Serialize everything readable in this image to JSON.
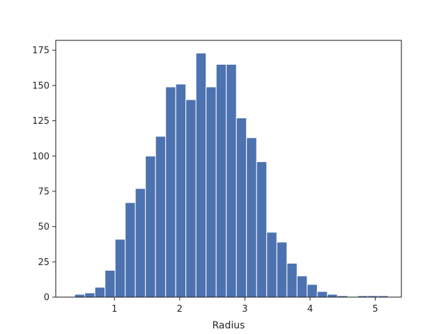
{
  "chart_data": {
    "type": "bar",
    "title": "",
    "xlabel": "Radius",
    "ylabel": "",
    "xlim": [
      0.1,
      5.4
    ],
    "ylim": [
      0,
      182
    ],
    "xticks": [
      1,
      2,
      3,
      4,
      5
    ],
    "yticks": [
      0,
      25,
      50,
      75,
      100,
      125,
      150,
      175
    ],
    "grid": false,
    "legend": "none",
    "bar_color": "#4c72b0",
    "bins": [
      {
        "x0": 0.39,
        "x1": 0.545,
        "count": 2
      },
      {
        "x0": 0.545,
        "x1": 0.7,
        "count": 3
      },
      {
        "x0": 0.7,
        "x1": 0.855,
        "count": 7
      },
      {
        "x0": 0.855,
        "x1": 1.01,
        "count": 19
      },
      {
        "x0": 1.01,
        "x1": 1.165,
        "count": 41
      },
      {
        "x0": 1.165,
        "x1": 1.32,
        "count": 67
      },
      {
        "x0": 1.32,
        "x1": 1.475,
        "count": 77
      },
      {
        "x0": 1.475,
        "x1": 1.63,
        "count": 100
      },
      {
        "x0": 1.63,
        "x1": 1.785,
        "count": 114
      },
      {
        "x0": 1.785,
        "x1": 1.94,
        "count": 149
      },
      {
        "x0": 1.94,
        "x1": 2.095,
        "count": 151
      },
      {
        "x0": 2.095,
        "x1": 2.25,
        "count": 140
      },
      {
        "x0": 2.25,
        "x1": 2.405,
        "count": 173
      },
      {
        "x0": 2.405,
        "x1": 2.56,
        "count": 149
      },
      {
        "x0": 2.56,
        "x1": 2.715,
        "count": 165
      },
      {
        "x0": 2.715,
        "x1": 2.87,
        "count": 165
      },
      {
        "x0": 2.87,
        "x1": 3.025,
        "count": 127
      },
      {
        "x0": 3.025,
        "x1": 3.18,
        "count": 113
      },
      {
        "x0": 3.18,
        "x1": 3.335,
        "count": 96
      },
      {
        "x0": 3.335,
        "x1": 3.49,
        "count": 46
      },
      {
        "x0": 3.49,
        "x1": 3.645,
        "count": 39
      },
      {
        "x0": 3.645,
        "x1": 3.8,
        "count": 24
      },
      {
        "x0": 3.8,
        "x1": 3.955,
        "count": 15
      },
      {
        "x0": 3.955,
        "x1": 4.11,
        "count": 9
      },
      {
        "x0": 4.11,
        "x1": 4.265,
        "count": 4
      },
      {
        "x0": 4.265,
        "x1": 4.42,
        "count": 2
      },
      {
        "x0": 4.42,
        "x1": 4.575,
        "count": 1
      },
      {
        "x0": 4.575,
        "x1": 4.73,
        "count": 0
      },
      {
        "x0": 4.73,
        "x1": 4.885,
        "count": 1
      },
      {
        "x0": 4.885,
        "x1": 5.04,
        "count": 1
      },
      {
        "x0": 5.04,
        "x1": 5.195,
        "count": 1
      }
    ]
  }
}
